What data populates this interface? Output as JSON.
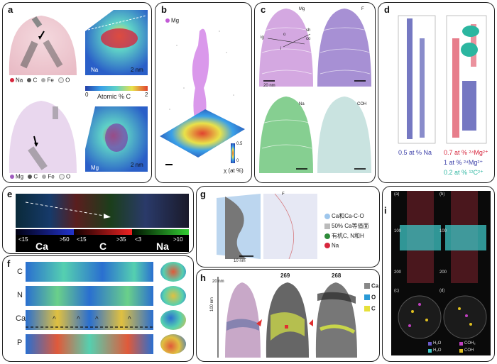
{
  "panels": {
    "a": {
      "label": "a",
      "legend_top": [
        "Na",
        "C",
        "Fe",
        "O"
      ],
      "legend_bottom": [
        "Mg",
        "C",
        "Fe",
        "O"
      ],
      "map_top_label": "Na",
      "map_bottom_label": "Mg",
      "scale_top": "2 nm",
      "scale_bottom": "2 nm",
      "colorbar_title": "Atomic % C",
      "colorbar_min": "0",
      "colorbar_max": "2",
      "colors": {
        "Na": "#d7263d",
        "C": "#555555",
        "Fe": "#aaaaaa",
        "O": "#eeeeee",
        "Mg": "#a05bbf"
      }
    },
    "b": {
      "label": "b",
      "legend": "Mg",
      "colorbar_max": "0.5",
      "colorbar_min": "0",
      "colorbar_title": "χ (at %)"
    },
    "c": {
      "label": "c",
      "tags": [
        "Mg",
        "F",
        "Na",
        "COH"
      ],
      "annot": [
        "ig",
        "o",
        "sh",
        "co",
        "i"
      ],
      "scale": "20 nm"
    },
    "d": {
      "label": "d",
      "line1": "0.5 at % Na",
      "line2": "0.7 at % ²⁴Mg²⁺",
      "line3": "1 at % ²⁴Mg²⁺",
      "line4": "0.2 at % ¹²C²⁺"
    },
    "e": {
      "label": "e",
      "elements": [
        "Ca",
        "C",
        "Na"
      ],
      "ca_range": [
        "<15",
        ">50"
      ],
      "c_range": [
        "<15",
        ">35"
      ],
      "na_range": [
        "<3",
        ">10"
      ]
    },
    "f": {
      "label": "f",
      "rows": [
        "C",
        "N",
        "Ca",
        "P"
      ],
      "carets": [
        "^",
        "^",
        "^",
        "^"
      ]
    },
    "g": {
      "label": "g",
      "legend": [
        "Ca和Ca-C-O",
        "50% Ca等值面",
        "有机C, N和H",
        "Na"
      ],
      "scale": "10 nm",
      "mark": "F"
    },
    "h": {
      "label": "h",
      "scale_top": "20 nm",
      "scale_side": "100 nm",
      "num1": "269",
      "num2": "268",
      "legend": [
        "Ca",
        "O",
        "C"
      ]
    },
    "i": {
      "label": "i",
      "sub": [
        "(a)",
        "(b)",
        "(c)",
        "(d)"
      ],
      "ticks": [
        "0",
        "100",
        "200",
        "0",
        "100",
        "200"
      ],
      "legend": [
        "H₂O",
        "COH₂",
        "H₃O",
        "COH"
      ]
    }
  }
}
